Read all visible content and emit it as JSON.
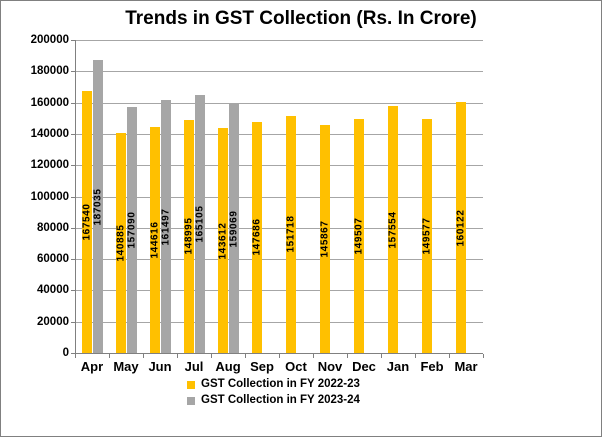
{
  "title": "Trends in GST Collection (Rs. In Crore)",
  "colors": {
    "series1": "#FFC000",
    "series2": "#A6A6A6",
    "gridline": "#A6A6A6",
    "axis": "#808080",
    "text": "#000000",
    "background": "#FFFFFF"
  },
  "chart_data": {
    "type": "bar",
    "title": "Trends in GST Collection (Rs. In Crore)",
    "categories": [
      "Apr",
      "May",
      "Jun",
      "Jul",
      "Aug",
      "Sep",
      "Oct",
      "Nov",
      "Dec",
      "Jan",
      "Feb",
      "Mar"
    ],
    "series": [
      {
        "name": "GST Collection in FY 2022-23",
        "color": "#FFC000",
        "values": [
          167540,
          140885,
          144616,
          148995,
          143612,
          147686,
          151718,
          145867,
          149507,
          157554,
          149577,
          160122
        ]
      },
      {
        "name": "GST Collection in FY 2023-24",
        "color": "#A6A6A6",
        "values": [
          187035,
          157090,
          161497,
          165105,
          159069,
          null,
          null,
          null,
          null,
          null,
          null,
          null
        ]
      }
    ],
    "xlabel": "",
    "ylabel": "",
    "ylim": [
      0,
      200000
    ],
    "ytick_step": 20000,
    "grid": true,
    "legend_position": "bottom",
    "data_labels": "rotated-inside-center"
  }
}
